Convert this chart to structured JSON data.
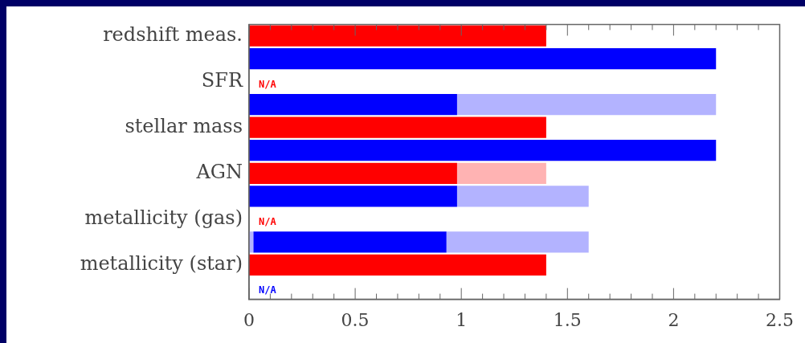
{
  "chart_data": {
    "type": "bar",
    "orientation": "horizontal",
    "stacked": true,
    "categories": [
      "redshift meas.",
      null,
      "SFR",
      null,
      "stellar mass",
      null,
      "AGN",
      null,
      "metallicity (gas)",
      null,
      "metallicity (star)",
      null
    ],
    "series": [
      {
        "color": "#b3b3ff",
        "values": [
          null,
          null,
          null,
          null,
          null,
          null,
          null,
          null,
          null,
          0.02,
          null,
          null
        ]
      },
      {
        "colors": [
          "#ff0000",
          "#0000ff",
          "#ff0000",
          "#0000ff",
          "#ff0000",
          "#0000ff",
          "#ff0000",
          "#0000ff",
          "#ff0000",
          "#0000ff",
          "#ff0000",
          "#0000ff"
        ],
        "values": [
          1.4,
          2.2,
          null,
          0.98,
          1.4,
          2.2,
          0.98,
          0.98,
          null,
          0.91,
          1.4,
          null
        ],
        "value_labels": [
          null,
          null,
          "N/A",
          null,
          null,
          null,
          null,
          null,
          "N/A",
          null,
          null,
          "N/A"
        ]
      },
      {
        "colors": [
          "#ffb3b3",
          "#b3b3ff",
          "#ffb3b3",
          "#b3b3ff",
          "#ffb3b3",
          "#b3b3ff",
          "#ffb3b3",
          "#b3b3ff",
          "#ffb3b3",
          "#b3b3ff",
          "#ffb3b3",
          "#b3b3ff"
        ],
        "values": [
          null,
          null,
          null,
          1.22,
          null,
          null,
          0.42,
          0.62,
          null,
          0.67,
          null,
          null
        ]
      }
    ],
    "xlim": [
      0,
      2.5
    ],
    "xticks": [
      0,
      {
        "value": 0.1,
        "label": null
      },
      {
        "value": 0.2,
        "label": null
      },
      {
        "value": 0.3,
        "label": null
      },
      {
        "value": 0.4,
        "label": null
      },
      0.5,
      {
        "value": 0.6,
        "label": null
      },
      {
        "value": 0.7,
        "label": null
      },
      {
        "value": 0.8,
        "label": null
      },
      {
        "value": 0.9,
        "label": null
      },
      1,
      {
        "value": 1.1,
        "label": null
      },
      {
        "value": 1.2,
        "label": null
      },
      {
        "value": 1.3,
        "label": null
      },
      {
        "value": 1.4,
        "label": null
      },
      1.5,
      {
        "value": 1.6,
        "label": null
      },
      {
        "value": 1.7,
        "label": null
      },
      {
        "value": 1.8,
        "label": null
      },
      {
        "value": 1.9,
        "label": null
      },
      2,
      {
        "value": 2.1,
        "label": null
      },
      {
        "value": 2.2,
        "label": null
      },
      {
        "value": 2.3,
        "label": null
      },
      {
        "value": 2.4,
        "label": null
      },
      2.5
    ],
    "grid": false,
    "legend": false
  }
}
